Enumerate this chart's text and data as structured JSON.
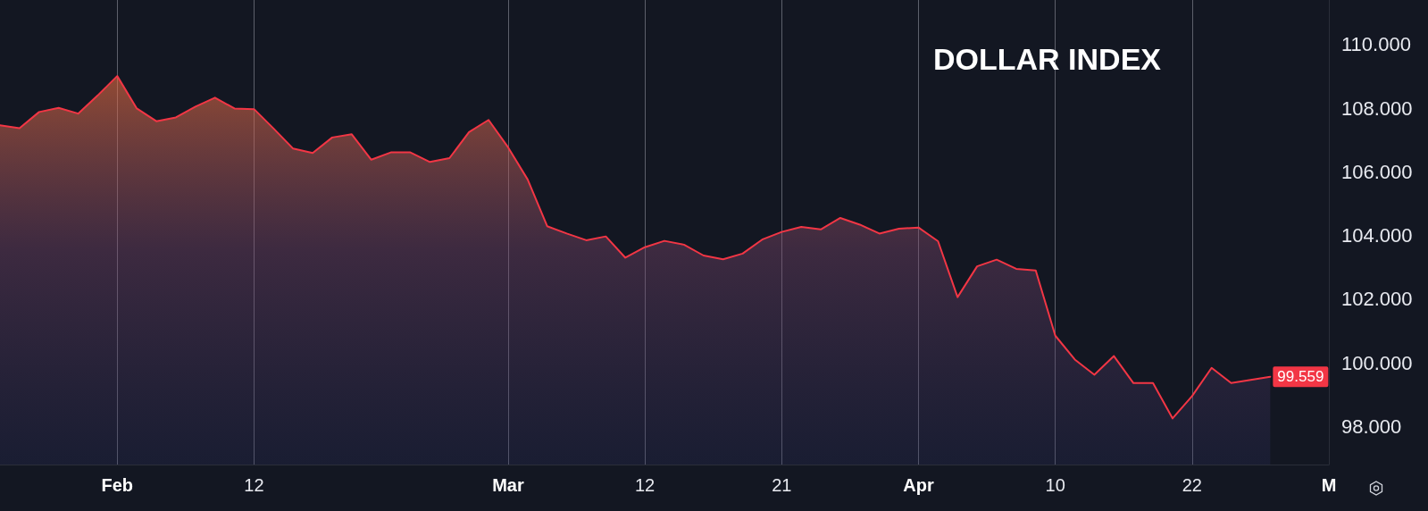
{
  "chart_data": {
    "type": "area",
    "title": "DOLLAR INDEX",
    "categories": [
      null,
      null,
      null,
      null,
      null,
      null,
      "Feb",
      null,
      null,
      null,
      null,
      null,
      null,
      "12",
      null,
      null,
      null,
      null,
      null,
      null,
      null,
      null,
      null,
      null,
      null,
      null,
      "Mar",
      null,
      null,
      null,
      null,
      null,
      null,
      "12",
      null,
      null,
      null,
      null,
      null,
      null,
      "21",
      null,
      null,
      null,
      null,
      null,
      null,
      "Apr",
      null,
      null,
      null,
      null,
      null,
      null,
      "10",
      null,
      null,
      null,
      null,
      null,
      null,
      "22",
      null,
      null,
      null,
      null,
      null,
      null,
      "M"
    ],
    "values": [
      107.46,
      107.37,
      107.88,
      108.01,
      107.83,
      108.4,
      109.01,
      107.99,
      107.59,
      107.71,
      108.05,
      108.33,
      107.99,
      107.97,
      107.36,
      106.73,
      106.59,
      107.08,
      107.18,
      106.38,
      106.61,
      106.61,
      106.31,
      106.43,
      107.25,
      107.63,
      106.77,
      105.76,
      104.29,
      104.06,
      103.85,
      103.97,
      103.3,
      103.63,
      103.83,
      103.71,
      103.37,
      103.25,
      103.43,
      103.87,
      104.11,
      104.27,
      104.19,
      104.55,
      104.34,
      104.06,
      104.21,
      104.25,
      103.82,
      102.06,
      103.03,
      103.24,
      102.95,
      102.9,
      100.85,
      100.1,
      99.62,
      100.21,
      99.36,
      99.36,
      98.25,
      98.95,
      99.84,
      99.36,
      99.46,
      99.559,
      null,
      null,
      null
    ],
    "value_labels": [
      null,
      null,
      null,
      null,
      null,
      null,
      null,
      null,
      null,
      null,
      null,
      null,
      null,
      null,
      null,
      null,
      null,
      null,
      null,
      null,
      null,
      null,
      null,
      null,
      null,
      null,
      null,
      null,
      null,
      null,
      null,
      null,
      null,
      null,
      null,
      null,
      null,
      null,
      null,
      null,
      null,
      null,
      null,
      null,
      null,
      null,
      null,
      null,
      null,
      null,
      null,
      null,
      null,
      null,
      null,
      null,
      null,
      null,
      null,
      null,
      null,
      null,
      null,
      null,
      null,
      "99.559",
      null,
      null,
      null
    ],
    "color": "#f23645",
    "ylim": [
      96.8,
      111.4
    ],
    "yticks": [
      {
        "value": 98,
        "label": "98.000"
      },
      {
        "value": 100,
        "label": "100.000"
      },
      {
        "value": 102,
        "label": "102.000"
      },
      {
        "value": 104,
        "label": "104.000"
      },
      {
        "value": 106,
        "label": "106.000"
      },
      {
        "value": 108,
        "label": "108.000"
      },
      {
        "value": 110,
        "label": "110.000"
      }
    ],
    "grid": "x",
    "marker": "none"
  }
}
